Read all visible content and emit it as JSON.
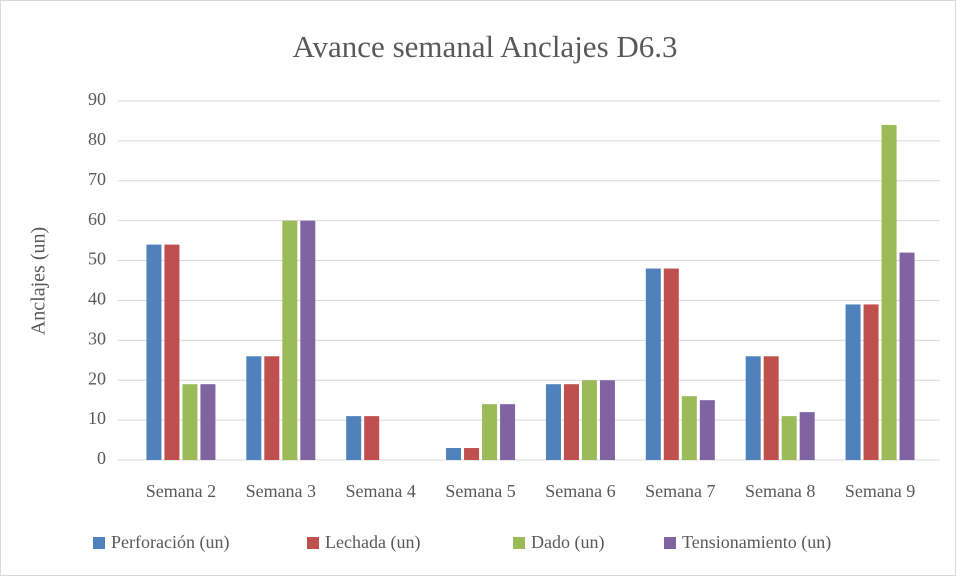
{
  "chart_data": {
    "type": "bar",
    "title": "Avance semanal Anclajes D6.3",
    "y_label": "Anclajes (un)",
    "categories": [
      "Semana 2",
      "Semana 3",
      "Semana 4",
      "Semana 5",
      "Semana 6",
      "Semana 7",
      "Semana 8",
      "Semana 9"
    ],
    "series": [
      {
        "name": "Perforación (un)",
        "color": "#4f81bd",
        "values": [
          54,
          26,
          11,
          3,
          19,
          48,
          26,
          39
        ]
      },
      {
        "name": "Lechada (un)",
        "color": "#c0504d",
        "values": [
          54,
          26,
          11,
          3,
          19,
          48,
          26,
          39
        ]
      },
      {
        "name": "Dado (un)",
        "color": "#9bbb59",
        "values": [
          19,
          60,
          0,
          14,
          20,
          16,
          11,
          84
        ]
      },
      {
        "name": "Tensionamiento (un)",
        "color": "#8064a2",
        "values": [
          19,
          60,
          0,
          14,
          20,
          15,
          12,
          52
        ]
      }
    ],
    "ylim": [
      0,
      90
    ],
    "yticks": [
      0,
      10,
      20,
      30,
      40,
      50,
      60,
      70,
      80,
      90
    ],
    "grid": true,
    "legend": "bottom"
  }
}
